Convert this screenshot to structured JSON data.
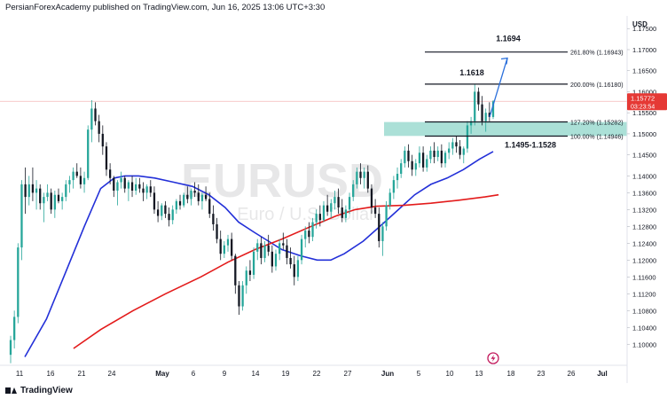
{
  "header": {
    "attribution": "PersianForexAcademy published on TradingView.com, Jun 16, 2025 13:06 UTC+3:30"
  },
  "footer": {
    "logo_text": "TradingView"
  },
  "colors": {
    "up": "#26a69a",
    "down": "#131722",
    "ma_fast": "#2330d8",
    "ma_slow": "#e31b1b",
    "zone": "#8fd6c9",
    "projection": "#2a6fdb",
    "price_line": "#f4b6b6",
    "price_tag": "#e53935"
  },
  "watermark": {
    "symbol": "EURUSD",
    "description": "Euro / U.S. Dollar"
  },
  "chart_data": {
    "type": "candlestick",
    "currency": "USD",
    "ylim": [
      1.095,
      1.178
    ],
    "y_ticks": [
      "1.17500",
      "1.17000",
      "1.16500",
      "1.16000",
      "1.15500",
      "1.15000",
      "1.14500",
      "1.14000",
      "1.13600",
      "1.13200",
      "1.12800",
      "1.12400",
      "1.12000",
      "1.11600",
      "1.11200",
      "1.10800",
      "1.10400",
      "1.10000"
    ],
    "x_ticks": [
      "11",
      "16",
      "21",
      "24",
      "May",
      "6",
      "9",
      "14",
      "19",
      "22",
      "27",
      "Jun",
      "5",
      "10",
      "13",
      "18",
      "23",
      "26",
      "Jul"
    ],
    "last_price": {
      "value": "1.15772",
      "countdown": "03:23:54"
    },
    "fib_levels": [
      {
        "label": "261.80% (1.16943)",
        "value": 1.16943
      },
      {
        "label": "200.00% (1.16180)",
        "value": 1.1618
      },
      {
        "label": "127.20% (1.15282)",
        "value": 1.15282
      },
      {
        "label": "100.00% (1.14946)",
        "value": 1.14946
      }
    ],
    "annotations": {
      "target": "1.1694",
      "high": "1.1618",
      "zone": "1.1495-1.1528"
    },
    "zone_range": [
      1.1495,
      1.1528
    ],
    "moving_averages": [
      {
        "color": "blue",
        "path": [
          [
            0,
            1.097
          ],
          [
            8,
            1.106
          ],
          [
            15,
            1.117
          ],
          [
            22,
            1.128
          ],
          [
            28,
            1.137
          ],
          [
            33,
            1.1395
          ],
          [
            37,
            1.14
          ],
          [
            42,
            1.14
          ],
          [
            48,
            1.1395
          ],
          [
            55,
            1.1385
          ],
          [
            62,
            1.1375
          ],
          [
            68,
            1.1355
          ],
          [
            74,
            1.1325
          ],
          [
            79,
            1.129
          ],
          [
            85,
            1.1265
          ],
          [
            90,
            1.1245
          ],
          [
            95,
            1.1225
          ],
          [
            102,
            1.121
          ],
          [
            108,
            1.12
          ],
          [
            113,
            1.12
          ],
          [
            118,
            1.1215
          ],
          [
            125,
            1.1245
          ],
          [
            132,
            1.1285
          ],
          [
            138,
            1.132
          ],
          [
            144,
            1.1355
          ],
          [
            150,
            1.138
          ],
          [
            156,
            1.1395
          ],
          [
            162,
            1.1415
          ],
          [
            168,
            1.144
          ],
          [
            173,
            1.1458
          ]
        ]
      },
      {
        "color": "red",
        "path": [
          [
            18,
            1.099
          ],
          [
            28,
            1.1035
          ],
          [
            40,
            1.108
          ],
          [
            52,
            1.112
          ],
          [
            65,
            1.116
          ],
          [
            75,
            1.1195
          ],
          [
            85,
            1.1225
          ],
          [
            95,
            1.125
          ],
          [
            105,
            1.1278
          ],
          [
            115,
            1.1305
          ],
          [
            122,
            1.132
          ],
          [
            130,
            1.1328
          ],
          [
            140,
            1.133
          ],
          [
            150,
            1.1335
          ],
          [
            160,
            1.1342
          ],
          [
            170,
            1.135
          ],
          [
            175,
            1.1355
          ]
        ]
      }
    ],
    "candles": [
      [
        1.0975,
        1.102,
        1.0955,
        1.101
      ],
      [
        1.101,
        1.108,
        1.099,
        1.1065
      ],
      [
        1.1065,
        1.124,
        1.105,
        1.123
      ],
      [
        1.123,
        1.139,
        1.12,
        1.138
      ],
      [
        1.138,
        1.142,
        1.131,
        1.135
      ],
      [
        1.135,
        1.14,
        1.133,
        1.138
      ],
      [
        1.138,
        1.142,
        1.134,
        1.136
      ],
      [
        1.136,
        1.139,
        1.132,
        1.137
      ],
      [
        1.137,
        1.138,
        1.132,
        1.1335
      ],
      [
        1.1335,
        1.136,
        1.129,
        1.135
      ],
      [
        1.135,
        1.138,
        1.134,
        1.136
      ],
      [
        1.136,
        1.137,
        1.131,
        1.132
      ],
      [
        1.132,
        1.1365,
        1.13,
        1.1355
      ],
      [
        1.1355,
        1.137,
        1.1335,
        1.134
      ],
      [
        1.134,
        1.136,
        1.132,
        1.135
      ],
      [
        1.135,
        1.139,
        1.134,
        1.138
      ],
      [
        1.138,
        1.14,
        1.136,
        1.139
      ],
      [
        1.139,
        1.142,
        1.137,
        1.141
      ],
      [
        1.141,
        1.143,
        1.1395,
        1.14
      ],
      [
        1.14,
        1.142,
        1.137,
        1.138
      ],
      [
        1.138,
        1.141,
        1.136,
        1.1395
      ],
      [
        1.1395,
        1.152,
        1.139,
        1.151
      ],
      [
        1.151,
        1.158,
        1.148,
        1.156
      ],
      [
        1.156,
        1.1575,
        1.152,
        1.153
      ],
      [
        1.153,
        1.1545,
        1.148,
        1.15
      ],
      [
        1.15,
        1.152,
        1.145,
        1.147
      ],
      [
        1.147,
        1.148,
        1.14,
        1.1415
      ],
      [
        1.1415,
        1.143,
        1.138,
        1.1395
      ],
      [
        1.1395,
        1.14,
        1.135,
        1.1365
      ],
      [
        1.1365,
        1.139,
        1.133,
        1.1385
      ],
      [
        1.1385,
        1.141,
        1.137,
        1.1395
      ],
      [
        1.1395,
        1.14,
        1.136,
        1.137
      ],
      [
        1.137,
        1.139,
        1.134,
        1.1385
      ],
      [
        1.1385,
        1.14,
        1.135,
        1.1365
      ],
      [
        1.1365,
        1.1395,
        1.1355,
        1.138
      ],
      [
        1.138,
        1.1395,
        1.136,
        1.137
      ],
      [
        1.137,
        1.1385,
        1.134,
        1.136
      ],
      [
        1.136,
        1.138,
        1.1345,
        1.1375
      ],
      [
        1.1375,
        1.139,
        1.135,
        1.136
      ],
      [
        1.136,
        1.1375,
        1.131,
        1.132
      ],
      [
        1.132,
        1.134,
        1.129,
        1.1305
      ],
      [
        1.1305,
        1.1335,
        1.1295,
        1.133
      ],
      [
        1.133,
        1.134,
        1.13,
        1.131
      ],
      [
        1.131,
        1.1325,
        1.128,
        1.1295
      ],
      [
        1.1295,
        1.133,
        1.1285,
        1.132
      ],
      [
        1.132,
        1.1345,
        1.131,
        1.134
      ],
      [
        1.134,
        1.1355,
        1.132,
        1.133
      ],
      [
        1.133,
        1.136,
        1.1325,
        1.1355
      ],
      [
        1.1355,
        1.1375,
        1.1335,
        1.1345
      ],
      [
        1.1345,
        1.137,
        1.133,
        1.1365
      ],
      [
        1.1365,
        1.1385,
        1.135,
        1.136
      ],
      [
        1.136,
        1.138,
        1.133,
        1.134
      ],
      [
        1.134,
        1.136,
        1.132,
        1.1355
      ],
      [
        1.1355,
        1.1375,
        1.134,
        1.1345
      ],
      [
        1.1345,
        1.136,
        1.13,
        1.131
      ],
      [
        1.131,
        1.133,
        1.127,
        1.1285
      ],
      [
        1.1285,
        1.13,
        1.124,
        1.125
      ],
      [
        1.125,
        1.127,
        1.12,
        1.1215
      ],
      [
        1.1215,
        1.1245,
        1.1205,
        1.1235
      ],
      [
        1.1235,
        1.126,
        1.122,
        1.125
      ],
      [
        1.125,
        1.1265,
        1.12,
        1.121
      ],
      [
        1.121,
        1.1215,
        1.112,
        1.114
      ],
      [
        1.114,
        1.115,
        1.107,
        1.109
      ],
      [
        1.109,
        1.115,
        1.108,
        1.114
      ],
      [
        1.114,
        1.1185,
        1.112,
        1.1175
      ],
      [
        1.1175,
        1.12,
        1.115,
        1.1165
      ],
      [
        1.1165,
        1.123,
        1.1155,
        1.122
      ],
      [
        1.122,
        1.125,
        1.12,
        1.124
      ],
      [
        1.124,
        1.1255,
        1.119,
        1.1205
      ],
      [
        1.1205,
        1.1245,
        1.1195,
        1.1235
      ],
      [
        1.1235,
        1.126,
        1.121,
        1.122
      ],
      [
        1.122,
        1.1235,
        1.117,
        1.1185
      ],
      [
        1.1185,
        1.1225,
        1.1175,
        1.1215
      ],
      [
        1.1215,
        1.125,
        1.12,
        1.124
      ],
      [
        1.124,
        1.1265,
        1.1225,
        1.1235
      ],
      [
        1.1235,
        1.125,
        1.119,
        1.1205
      ],
      [
        1.1205,
        1.123,
        1.118,
        1.119
      ],
      [
        1.119,
        1.121,
        1.114,
        1.116
      ],
      [
        1.116,
        1.121,
        1.115,
        1.12
      ],
      [
        1.12,
        1.126,
        1.119,
        1.125
      ],
      [
        1.125,
        1.128,
        1.123,
        1.127
      ],
      [
        1.127,
        1.129,
        1.124,
        1.1255
      ],
      [
        1.1255,
        1.13,
        1.1245,
        1.129
      ],
      [
        1.129,
        1.132,
        1.1275,
        1.131
      ],
      [
        1.131,
        1.133,
        1.128,
        1.1295
      ],
      [
        1.1295,
        1.134,
        1.129,
        1.133
      ],
      [
        1.133,
        1.1355,
        1.1305,
        1.1315
      ],
      [
        1.1315,
        1.1345,
        1.13,
        1.1335
      ],
      [
        1.1335,
        1.1365,
        1.132,
        1.135
      ],
      [
        1.135,
        1.137,
        1.131,
        1.1325
      ],
      [
        1.1325,
        1.1345,
        1.129,
        1.13
      ],
      [
        1.13,
        1.133,
        1.129,
        1.132
      ],
      [
        1.132,
        1.136,
        1.131,
        1.135
      ],
      [
        1.135,
        1.139,
        1.134,
        1.138
      ],
      [
        1.138,
        1.142,
        1.137,
        1.141
      ],
      [
        1.141,
        1.143,
        1.138,
        1.1395
      ],
      [
        1.1395,
        1.142,
        1.137,
        1.141
      ],
      [
        1.141,
        1.1425,
        1.136,
        1.137
      ],
      [
        1.137,
        1.138,
        1.131,
        1.1325
      ],
      [
        1.1325,
        1.1345,
        1.13,
        1.131
      ],
      [
        1.131,
        1.1325,
        1.123,
        1.1245
      ],
      [
        1.1245,
        1.129,
        1.121,
        1.128
      ],
      [
        1.128,
        1.134,
        1.127,
        1.133
      ],
      [
        1.133,
        1.137,
        1.132,
        1.136
      ],
      [
        1.136,
        1.14,
        1.1345,
        1.139
      ],
      [
        1.139,
        1.142,
        1.137,
        1.1405
      ],
      [
        1.1405,
        1.144,
        1.1395,
        1.143
      ],
      [
        1.143,
        1.147,
        1.142,
        1.146
      ],
      [
        1.146,
        1.1475,
        1.142,
        1.1435
      ],
      [
        1.1435,
        1.145,
        1.14,
        1.1415
      ],
      [
        1.1415,
        1.144,
        1.14,
        1.143
      ],
      [
        1.143,
        1.147,
        1.142,
        1.1455
      ],
      [
        1.1455,
        1.147,
        1.141,
        1.142
      ],
      [
        1.142,
        1.145,
        1.141,
        1.144
      ],
      [
        1.144,
        1.147,
        1.143,
        1.146
      ],
      [
        1.146,
        1.148,
        1.143,
        1.1445
      ],
      [
        1.1445,
        1.147,
        1.1435,
        1.146
      ],
      [
        1.146,
        1.1475,
        1.142,
        1.143
      ],
      [
        1.143,
        1.146,
        1.142,
        1.1455
      ],
      [
        1.1455,
        1.148,
        1.144,
        1.1465
      ],
      [
        1.1465,
        1.149,
        1.145,
        1.148
      ],
      [
        1.148,
        1.1495,
        1.1455,
        1.147
      ],
      [
        1.147,
        1.1485,
        1.144,
        1.145
      ],
      [
        1.145,
        1.147,
        1.143,
        1.1465
      ],
      [
        1.1465,
        1.153,
        1.1455,
        1.152
      ],
      [
        1.152,
        1.154,
        1.15,
        1.153
      ],
      [
        1.153,
        1.1618,
        1.152,
        1.16
      ],
      [
        1.16,
        1.161,
        1.1555,
        1.157
      ],
      [
        1.157,
        1.159,
        1.152,
        1.153
      ],
      [
        1.153,
        1.156,
        1.1505,
        1.155
      ],
      [
        1.155,
        1.1575,
        1.153,
        1.154
      ],
      [
        1.154,
        1.158,
        1.1535,
        1.1577
      ]
    ]
  }
}
